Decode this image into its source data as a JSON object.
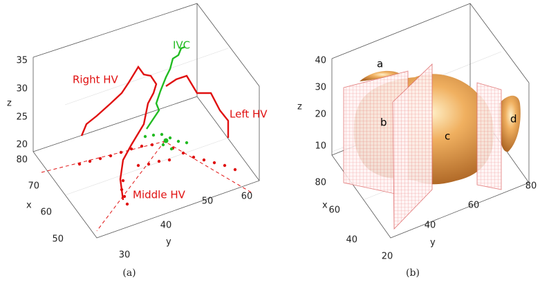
{
  "panels": [
    {
      "caption": "(a)",
      "axis_labels": {
        "x": "x",
        "y": "y",
        "z": "z"
      },
      "z_ticks": [
        35,
        30,
        25,
        20
      ],
      "x_ticks": [
        80,
        70,
        60,
        50
      ],
      "y_ticks": [
        30,
        40,
        50,
        60
      ],
      "annotations": [
        "Right HV",
        "IVC",
        "Left HV",
        "Middle HV"
      ]
    },
    {
      "caption": "(b)",
      "axis_labels": {
        "x": "x",
        "y": "y",
        "z": "z"
      },
      "z_ticks": [
        40,
        30,
        20,
        10
      ],
      "x_ticks": [
        80,
        60,
        40
      ],
      "y_ticks": [
        20,
        40,
        60,
        80
      ],
      "annotations": [
        "a",
        "b",
        "c",
        "d"
      ]
    }
  ]
}
